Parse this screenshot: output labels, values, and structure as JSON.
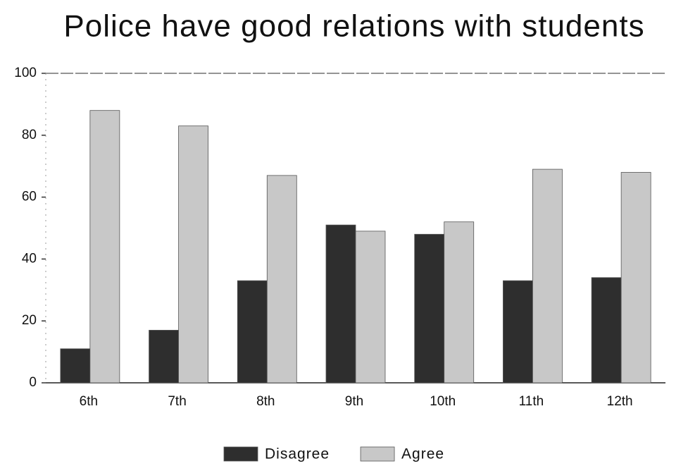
{
  "chart_data": {
    "type": "bar",
    "title": "Police have good relations with students",
    "categories": [
      "6th",
      "7th",
      "8th",
      "9th",
      "10th",
      "11th",
      "12th"
    ],
    "series": [
      {
        "name": "Disagree",
        "color": "#2e2e2e",
        "values": [
          11,
          17,
          33,
          51,
          48,
          33,
          34
        ]
      },
      {
        "name": "Agree",
        "color": "#c8c8c8",
        "values": [
          88,
          83,
          67,
          49,
          52,
          69,
          68
        ]
      }
    ],
    "ylim": [
      0,
      100
    ],
    "yticks": [
      0,
      20,
      40,
      60,
      80,
      100
    ],
    "grid": false,
    "legend": "bottom"
  }
}
